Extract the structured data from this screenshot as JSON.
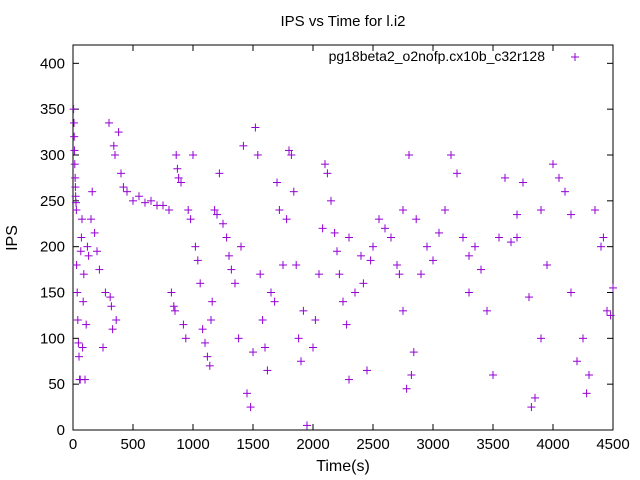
{
  "chart_data": {
    "type": "scatter",
    "title": "IPS vs Time for l.i2",
    "xlabel": "Time(s)",
    "ylabel": "IPS",
    "xlim": [
      0,
      4500
    ],
    "ylim": [
      0,
      420
    ],
    "xticks": [
      0,
      500,
      1000,
      1500,
      2000,
      2500,
      3000,
      3500,
      4000,
      4500
    ],
    "yticks": [
      0,
      50,
      100,
      150,
      200,
      250,
      300,
      350,
      400
    ],
    "grid": false,
    "legend_position": "top-right",
    "marker": "+",
    "series": [
      {
        "name": "pg18beta2_o2nofp.cx10b_c32r128",
        "color": "#9400d3",
        "points": [
          [
            5,
            350
          ],
          [
            8,
            335
          ],
          [
            10,
            320
          ],
          [
            12,
            305
          ],
          [
            15,
            290
          ],
          [
            18,
            275
          ],
          [
            20,
            265
          ],
          [
            22,
            255
          ],
          [
            25,
            248
          ],
          [
            28,
            240
          ],
          [
            30,
            180
          ],
          [
            35,
            150
          ],
          [
            40,
            120
          ],
          [
            45,
            95
          ],
          [
            50,
            80
          ],
          [
            55,
            55
          ],
          [
            60,
            55
          ],
          [
            65,
            195
          ],
          [
            70,
            210
          ],
          [
            75,
            230
          ],
          [
            80,
            90
          ],
          [
            85,
            140
          ],
          [
            90,
            170
          ],
          [
            100,
            55
          ],
          [
            110,
            115
          ],
          [
            120,
            200
          ],
          [
            130,
            190
          ],
          [
            150,
            230
          ],
          [
            160,
            260
          ],
          [
            180,
            215
          ],
          [
            200,
            195
          ],
          [
            220,
            175
          ],
          [
            250,
            90
          ],
          [
            270,
            150
          ],
          [
            300,
            335
          ],
          [
            310,
            145
          ],
          [
            320,
            135
          ],
          [
            330,
            110
          ],
          [
            340,
            310
          ],
          [
            350,
            300
          ],
          [
            360,
            120
          ],
          [
            380,
            325
          ],
          [
            400,
            280
          ],
          [
            420,
            265
          ],
          [
            450,
            260
          ],
          [
            500,
            250
          ],
          [
            550,
            255
          ],
          [
            600,
            248
          ],
          [
            650,
            250
          ],
          [
            700,
            245
          ],
          [
            750,
            245
          ],
          [
            800,
            240
          ],
          [
            820,
            150
          ],
          [
            840,
            135
          ],
          [
            850,
            130
          ],
          [
            860,
            300
          ],
          [
            870,
            285
          ],
          [
            880,
            275
          ],
          [
            900,
            270
          ],
          [
            920,
            115
          ],
          [
            940,
            100
          ],
          [
            960,
            240
          ],
          [
            980,
            230
          ],
          [
            1000,
            300
          ],
          [
            1020,
            200
          ],
          [
            1040,
            185
          ],
          [
            1060,
            160
          ],
          [
            1080,
            110
          ],
          [
            1100,
            95
          ],
          [
            1120,
            80
          ],
          [
            1140,
            70
          ],
          [
            1150,
            120
          ],
          [
            1160,
            140
          ],
          [
            1180,
            240
          ],
          [
            1200,
            235
          ],
          [
            1220,
            280
          ],
          [
            1250,
            225
          ],
          [
            1280,
            210
          ],
          [
            1300,
            190
          ],
          [
            1320,
            175
          ],
          [
            1350,
            160
          ],
          [
            1380,
            100
          ],
          [
            1400,
            200
          ],
          [
            1420,
            310
          ],
          [
            1450,
            40
          ],
          [
            1480,
            25
          ],
          [
            1500,
            85
          ],
          [
            1520,
            330
          ],
          [
            1540,
            300
          ],
          [
            1560,
            170
          ],
          [
            1580,
            120
          ],
          [
            1600,
            90
          ],
          [
            1620,
            65
          ],
          [
            1650,
            150
          ],
          [
            1680,
            140
          ],
          [
            1700,
            270
          ],
          [
            1720,
            240
          ],
          [
            1750,
            180
          ],
          [
            1780,
            230
          ],
          [
            1800,
            305
          ],
          [
            1820,
            300
          ],
          [
            1840,
            260
          ],
          [
            1860,
            180
          ],
          [
            1880,
            100
          ],
          [
            1900,
            75
          ],
          [
            1920,
            130
          ],
          [
            1950,
            5
          ],
          [
            2000,
            90
          ],
          [
            2020,
            120
          ],
          [
            2050,
            170
          ],
          [
            2080,
            220
          ],
          [
            2100,
            290
          ],
          [
            2120,
            280
          ],
          [
            2150,
            250
          ],
          [
            2180,
            215
          ],
          [
            2200,
            195
          ],
          [
            2220,
            170
          ],
          [
            2250,
            140
          ],
          [
            2280,
            115
          ],
          [
            2300,
            210
          ],
          [
            2350,
            150
          ],
          [
            2400,
            190
          ],
          [
            2420,
            160
          ],
          [
            2450,
            65
          ],
          [
            2480,
            185
          ],
          [
            2500,
            200
          ],
          [
            2550,
            230
          ],
          [
            2600,
            220
          ],
          [
            2650,
            210
          ],
          [
            2700,
            180
          ],
          [
            2720,
            170
          ],
          [
            2750,
            130
          ],
          [
            2780,
            45
          ],
          [
            2800,
            300
          ],
          [
            2820,
            60
          ],
          [
            2840,
            85
          ],
          [
            2860,
            230
          ],
          [
            2900,
            170
          ],
          [
            2950,
            200
          ],
          [
            3000,
            185
          ],
          [
            3050,
            215
          ],
          [
            3100,
            240
          ],
          [
            3150,
            300
          ],
          [
            3200,
            280
          ],
          [
            3250,
            210
          ],
          [
            3300,
            150
          ],
          [
            3350,
            200
          ],
          [
            3400,
            175
          ],
          [
            3450,
            130
          ],
          [
            3500,
            60
          ],
          [
            3550,
            210
          ],
          [
            3600,
            275
          ],
          [
            3650,
            205
          ],
          [
            3700,
            210
          ],
          [
            3750,
            270
          ],
          [
            3800,
            145
          ],
          [
            3820,
            25
          ],
          [
            3850,
            35
          ],
          [
            3900,
            100
          ],
          [
            3950,
            180
          ],
          [
            4000,
            290
          ],
          [
            4050,
            275
          ],
          [
            4100,
            260
          ],
          [
            4150,
            150
          ],
          [
            4200,
            75
          ],
          [
            4250,
            100
          ],
          [
            4280,
            40
          ],
          [
            4300,
            60
          ],
          [
            4350,
            240
          ],
          [
            4400,
            200
          ],
          [
            4420,
            210
          ],
          [
            4450,
            130
          ],
          [
            4480,
            125
          ],
          [
            4500,
            155
          ],
          [
            4150,
            235
          ],
          [
            3900,
            240
          ],
          [
            3700,
            235
          ],
          [
            3300,
            190
          ],
          [
            2750,
            240
          ],
          [
            2300,
            55
          ]
        ]
      }
    ]
  }
}
